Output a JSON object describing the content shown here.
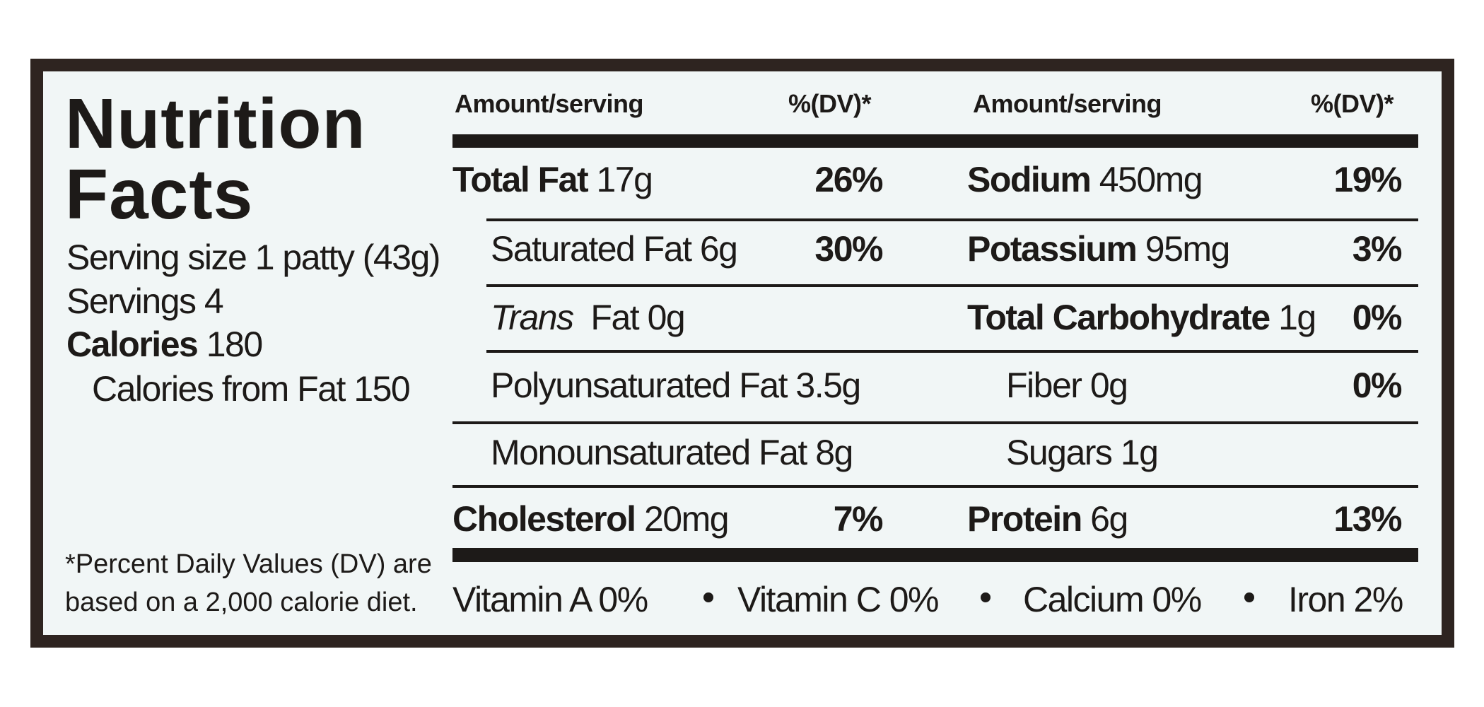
{
  "title": [
    "Nutrition",
    "Facts"
  ],
  "serving": {
    "serving_size": "Serving size 1 patty (43g)",
    "servings": "Servings 4",
    "calories_label": "Calories",
    "calories": "180",
    "calories_from_fat": "Calories from Fat 150"
  },
  "footnote": [
    "*Percent Daily Values (DV) are",
    "based on a 2,000 calorie diet."
  ],
  "columns": [
    {
      "header": {
        "amount": "Amount/serving",
        "dv": "%(DV)*"
      },
      "rows": [
        {
          "name": "Total Fat",
          "amount": "17g",
          "dv": "26%"
        },
        {
          "name": "Saturated Fat",
          "amount": "6g",
          "dv": "30%",
          "sub": true
        },
        {
          "prefix": "Trans",
          "name": "Fat",
          "amount": "0g",
          "sub": true
        },
        {
          "name": "Polyunsaturated Fat",
          "amount": "3.5g",
          "sub": true
        },
        {
          "name": "Monounsaturated Fat",
          "amount": "8g",
          "sub": true
        },
        {
          "name": "Cholesterol",
          "amount": "20mg",
          "dv": "7%"
        }
      ]
    },
    {
      "header": {
        "amount": "Amount/serving",
        "dv": "%(DV)*"
      },
      "rows": [
        {
          "name": "Sodium",
          "amount": "450mg",
          "dv": "19%"
        },
        {
          "name": "Potassium",
          "amount": "95mg",
          "dv": "3%"
        },
        {
          "name": "Total Carbohydrate",
          "amount": "1g",
          "dv": "0%"
        },
        {
          "name": "Fiber",
          "amount": "0g",
          "dv": "0%",
          "sub": true
        },
        {
          "name": "Sugars",
          "amount": "1g",
          "sub": true
        },
        {
          "name": "Protein",
          "amount": "6g",
          "dv": "13%"
        }
      ]
    }
  ],
  "vitamins": [
    "Vitamin A 0%",
    "Vitamin C 0%",
    "Calcium 0%",
    "Iron 2%"
  ]
}
